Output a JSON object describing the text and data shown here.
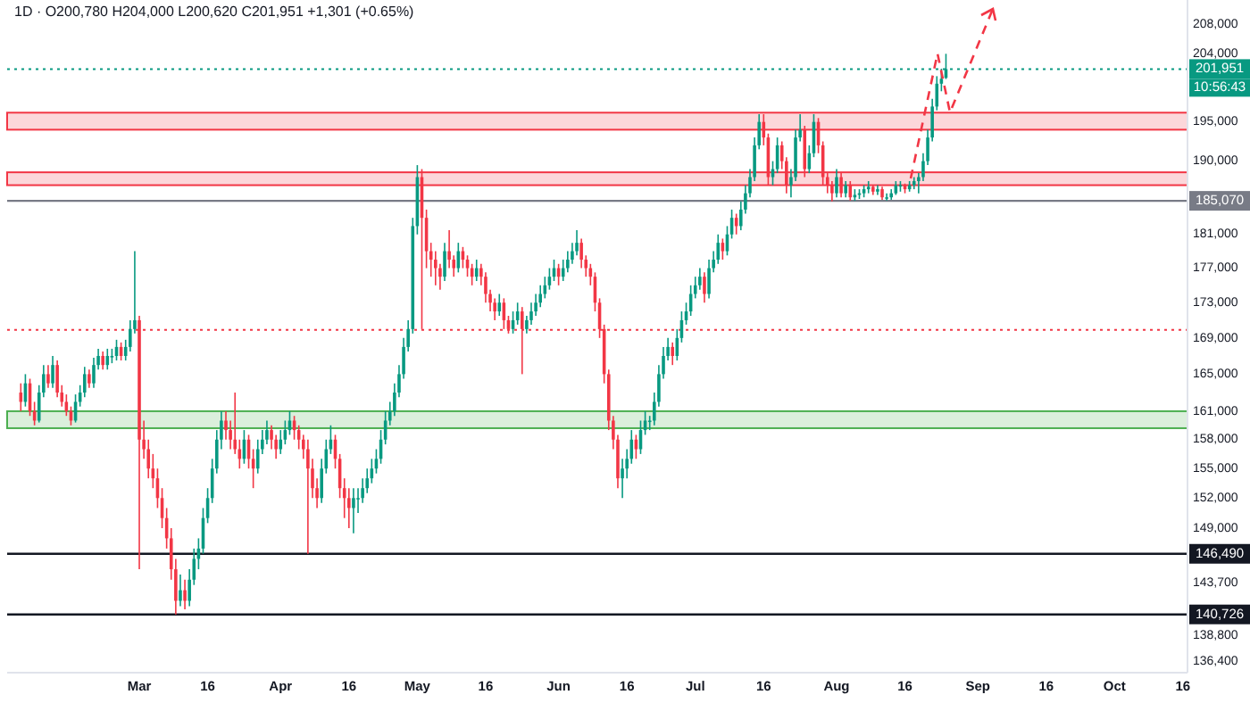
{
  "chart_data": {
    "type": "candlestick",
    "title": "1D · O200,780 H204,000 L200,620 C201,951 +1,301 (+0.65%)",
    "log": true,
    "xlim": [
      "--01-31",
      "--10-17"
    ],
    "ylim": [
      135400,
      211400
    ],
    "xticks": [
      {
        "value": "--03-01",
        "label": "Mar"
      },
      {
        "value": "--03-16",
        "label": "16"
      },
      {
        "value": "--04-01",
        "label": "Apr"
      },
      {
        "value": "--04-16",
        "label": "16"
      },
      {
        "value": "--05-01",
        "label": "May"
      },
      {
        "value": "--05-16",
        "label": "16"
      },
      {
        "value": "--06-01",
        "label": "Jun"
      },
      {
        "value": "--06-16",
        "label": "16"
      },
      {
        "value": "--07-01",
        "label": "Jul"
      },
      {
        "value": "--07-16",
        "label": "16"
      },
      {
        "value": "--08-01",
        "label": "Aug"
      },
      {
        "value": "--08-16",
        "label": "16"
      },
      {
        "value": "--09-01",
        "label": "Sep"
      },
      {
        "value": "--09-16",
        "label": "16"
      },
      {
        "value": "--10-01",
        "label": "Oct"
      },
      {
        "value": "--10-16",
        "label": "16"
      }
    ],
    "yticks": [
      {
        "value": 208000,
        "label": "208,000"
      },
      {
        "value": 204000,
        "label": "204,000"
      },
      {
        "value": 195000,
        "label": "195,000"
      },
      {
        "value": 190000,
        "label": "190,000"
      },
      {
        "value": 181000,
        "label": "181,000"
      },
      {
        "value": 177000,
        "label": "177,000"
      },
      {
        "value": 173000,
        "label": "173,000"
      },
      {
        "value": 169000,
        "label": "169,000"
      },
      {
        "value": 165000,
        "label": "165,000"
      },
      {
        "value": 161000,
        "label": "161,000"
      },
      {
        "value": 158000,
        "label": "158,000"
      },
      {
        "value": 155000,
        "label": "155,000"
      },
      {
        "value": 152000,
        "label": "152,000"
      },
      {
        "value": 149000,
        "label": "149,000"
      },
      {
        "value": 143700,
        "label": "143,700"
      },
      {
        "value": 138800,
        "label": "138,800"
      },
      {
        "value": 136400,
        "label": "136,400"
      }
    ],
    "ref_lines": [
      {
        "axis": "y",
        "value": 201951,
        "label": "201,951",
        "color": "#089981",
        "line_style": "dotted"
      },
      {
        "axis": "y",
        "value": 185070,
        "label": "185,070",
        "color": "#787b86",
        "line_style": "solid"
      },
      {
        "axis": "y",
        "value": 146490,
        "label": "146,490",
        "color": "#131722",
        "line_style": "solid"
      },
      {
        "axis": "y",
        "value": 140726,
        "label": "140,726",
        "color": "#131722",
        "line_style": "solid"
      },
      {
        "axis": "y",
        "value": 169900,
        "label": null,
        "color": "#f23645",
        "line_style": "dotted"
      }
    ],
    "bands": [
      {
        "axis": "y",
        "from": 194000,
        "to": 196200,
        "label": null,
        "color": "#f23645"
      },
      {
        "axis": "y",
        "from": 187000,
        "to": 188600,
        "label": null,
        "color": "#f23645"
      },
      {
        "axis": "y",
        "from": 159200,
        "to": 161000,
        "label": null,
        "color": "#4caf50"
      }
    ],
    "annotations": [
      "10:56:43"
    ],
    "x": [
      "--02-03",
      "--02-04",
      "--02-05",
      "--02-06",
      "--02-07",
      "--02-08",
      "--02-09",
      "--02-10",
      "--02-11",
      "--02-12",
      "--02-13",
      "--02-14",
      "--02-15",
      "--02-16",
      "--02-17",
      "--02-18",
      "--02-19",
      "--02-20",
      "--02-21",
      "--02-22",
      "--02-23",
      "--02-24",
      "--02-25",
      "--02-26",
      "--02-27",
      "--02-28",
      "--03-01",
      "--03-02",
      "--03-03",
      "--03-04",
      "--03-05",
      "--03-06",
      "--03-07",
      "--03-08",
      "--03-09",
      "--03-10",
      "--03-11",
      "--03-12",
      "--03-13",
      "--03-14",
      "--03-15",
      "--03-16",
      "--03-17",
      "--03-18",
      "--03-19",
      "--03-20",
      "--03-21",
      "--03-22",
      "--03-23",
      "--03-24",
      "--03-25",
      "--03-26",
      "--03-27",
      "--03-28",
      "--03-29",
      "--03-30",
      "--03-31",
      "--04-01",
      "--04-02",
      "--04-03",
      "--04-04",
      "--04-05",
      "--04-06",
      "--04-07",
      "--04-08",
      "--04-09",
      "--04-10",
      "--04-11",
      "--04-12",
      "--04-13",
      "--04-14",
      "--04-15",
      "--04-16",
      "--04-17",
      "--04-18",
      "--04-19",
      "--04-20",
      "--04-21",
      "--04-22",
      "--04-23",
      "--04-24",
      "--04-25",
      "--04-26",
      "--04-27",
      "--04-28",
      "--04-29",
      "--04-30",
      "--05-01",
      "--05-02",
      "--05-03",
      "--05-04",
      "--05-05",
      "--05-06",
      "--05-07",
      "--05-08",
      "--05-09",
      "--05-10",
      "--05-11",
      "--05-12",
      "--05-13",
      "--05-14",
      "--05-15",
      "--05-16",
      "--05-17",
      "--05-18",
      "--05-19",
      "--05-20",
      "--05-21",
      "--05-22",
      "--05-23",
      "--05-24",
      "--05-25",
      "--05-26",
      "--05-27",
      "--05-28",
      "--05-29",
      "--05-30",
      "--05-31",
      "--06-01",
      "--06-02",
      "--06-03",
      "--06-04",
      "--06-05",
      "--06-06",
      "--06-07",
      "--06-08",
      "--06-09",
      "--06-10",
      "--06-11",
      "--06-12",
      "--06-13",
      "--06-14",
      "--06-15",
      "--06-16",
      "--06-17",
      "--06-18",
      "--06-19",
      "--06-20",
      "--06-21",
      "--06-22",
      "--06-23",
      "--06-24",
      "--06-25",
      "--06-26",
      "--06-27",
      "--06-28",
      "--06-29",
      "--06-30",
      "--07-01",
      "--07-02",
      "--07-03",
      "--07-04",
      "--07-05",
      "--07-06",
      "--07-07",
      "--07-08",
      "--07-09",
      "--07-10",
      "--07-11",
      "--07-12",
      "--07-13",
      "--07-14",
      "--07-15",
      "--07-16",
      "--07-17",
      "--07-18",
      "--07-19",
      "--07-20",
      "--07-21",
      "--07-22",
      "--07-23",
      "--07-24",
      "--07-25",
      "--07-26",
      "--07-27",
      "--07-28",
      "--07-29",
      "--07-30",
      "--07-31",
      "--08-01",
      "--08-02",
      "--08-03",
      "--08-04",
      "--08-05",
      "--08-06",
      "--08-07",
      "--08-08",
      "--08-09",
      "--08-10",
      "--08-11",
      "--08-12",
      "--08-13",
      "--08-14",
      "--08-15",
      "--08-16",
      "--08-17",
      "--08-18",
      "--08-19",
      "--08-20",
      "--08-21",
      "--08-22",
      "--08-23",
      "--08-24",
      "--08-25"
    ],
    "ohlc": [
      [
        163000,
        164000,
        161000,
        162000
      ],
      [
        162000,
        165000,
        161500,
        164000
      ],
      [
        164000,
        164500,
        160500,
        161000
      ],
      [
        161000,
        162000,
        159500,
        160000
      ],
      [
        160000,
        163800,
        159800,
        163000
      ],
      [
        163000,
        166000,
        162500,
        165000
      ],
      [
        165000,
        166000,
        163500,
        164000
      ],
      [
        164000,
        167000,
        163500,
        166000
      ],
      [
        166000,
        166500,
        162500,
        163000
      ],
      [
        163000,
        163800,
        161500,
        162000
      ],
      [
        162000,
        162800,
        160500,
        161000
      ],
      [
        161000,
        161500,
        159500,
        160000
      ],
      [
        160000,
        162800,
        159800,
        162000
      ],
      [
        162000,
        163800,
        161500,
        163000
      ],
      [
        163000,
        165800,
        162500,
        165000
      ],
      [
        165000,
        165500,
        163500,
        164000
      ],
      [
        164000,
        166800,
        163500,
        166000
      ],
      [
        166000,
        167800,
        165500,
        167000
      ],
      [
        167000,
        167500,
        165500,
        166000
      ],
      [
        166000,
        167800,
        165500,
        167000
      ],
      [
        167000,
        167800,
        166200,
        167000
      ],
      [
        167000,
        168800,
        166500,
        168000
      ],
      [
        168000,
        168500,
        166500,
        167000
      ],
      [
        167000,
        168800,
        166500,
        168000
      ],
      [
        168000,
        171000,
        167500,
        170000
      ],
      [
        170000,
        179000,
        169500,
        171000
      ],
      [
        171000,
        171500,
        145000,
        158000
      ],
      [
        158000,
        160000,
        156000,
        157000
      ],
      [
        157000,
        158000,
        154000,
        155000
      ],
      [
        155000,
        156500,
        153000,
        154000
      ],
      [
        154000,
        155000,
        151000,
        152000
      ],
      [
        152000,
        153000,
        149000,
        150000
      ],
      [
        150000,
        151000,
        147000,
        148000
      ],
      [
        148000,
        149000,
        144000,
        145000
      ],
      [
        145000,
        146000,
        140726,
        142000
      ],
      [
        142000,
        144500,
        141500,
        143000
      ],
      [
        143000,
        144000,
        141200,
        142000
      ],
      [
        142000,
        145000,
        141500,
        144000
      ],
      [
        144000,
        147000,
        143500,
        146000
      ],
      [
        146000,
        148000,
        145000,
        147000
      ],
      [
        147000,
        151000,
        146500,
        150000
      ],
      [
        150000,
        153000,
        149500,
        152000
      ],
      [
        152000,
        156000,
        151500,
        155000
      ],
      [
        155000,
        159000,
        154500,
        158000
      ],
      [
        158000,
        161000,
        157000,
        160000
      ],
      [
        160000,
        161000,
        158000,
        159000
      ],
      [
        159000,
        160000,
        157000,
        158000
      ],
      [
        158000,
        163000,
        156500,
        157000
      ],
      [
        157000,
        158000,
        155000,
        156000
      ],
      [
        156000,
        159000,
        155500,
        158000
      ],
      [
        158000,
        158500,
        155000,
        156000
      ],
      [
        156000,
        157000,
        153000,
        155000
      ],
      [
        155000,
        158000,
        154500,
        157000
      ],
      [
        157000,
        159000,
        156500,
        158000
      ],
      [
        158000,
        160000,
        157500,
        159000
      ],
      [
        159000,
        159500,
        157000,
        158000
      ],
      [
        158000,
        158500,
        156000,
        157000
      ],
      [
        157000,
        159000,
        156500,
        158000
      ],
      [
        158000,
        160000,
        157500,
        159000
      ],
      [
        159000,
        161000,
        158500,
        160000
      ],
      [
        160000,
        160500,
        158000,
        159000
      ],
      [
        159000,
        159500,
        157000,
        158000
      ],
      [
        158000,
        158500,
        156000,
        157000
      ],
      [
        157000,
        158000,
        146490,
        155000
      ],
      [
        155000,
        156000,
        152000,
        153000
      ],
      [
        153000,
        154000,
        151000,
        152000
      ],
      [
        152000,
        156000,
        151500,
        155000
      ],
      [
        155000,
        158000,
        154500,
        157000
      ],
      [
        157000,
        159500,
        156500,
        158000
      ],
      [
        158000,
        158500,
        155000,
        156000
      ],
      [
        156000,
        156500,
        152000,
        153000
      ],
      [
        153000,
        154000,
        150000,
        152000
      ],
      [
        152000,
        153000,
        149000,
        151000
      ],
      [
        151000,
        153000,
        148500,
        152000
      ],
      [
        152000,
        153000,
        150500,
        152000
      ],
      [
        152000,
        154000,
        151500,
        153000
      ],
      [
        153000,
        155000,
        152500,
        154000
      ],
      [
        154000,
        156000,
        153500,
        155000
      ],
      [
        155000,
        157000,
        154500,
        156000
      ],
      [
        156000,
        159000,
        155500,
        158000
      ],
      [
        158000,
        161000,
        157500,
        160000
      ],
      [
        160000,
        162000,
        159500,
        161000
      ],
      [
        161000,
        164000,
        160500,
        163000
      ],
      [
        163000,
        166000,
        162500,
        165000
      ],
      [
        165000,
        169000,
        164500,
        168000
      ],
      [
        168000,
        171000,
        167500,
        170000
      ],
      [
        170000,
        183000,
        169500,
        182000
      ],
      [
        182000,
        189500,
        181000,
        188000
      ],
      [
        188000,
        189000,
        170000,
        183000
      ],
      [
        183000,
        184000,
        177000,
        179000
      ],
      [
        179000,
        180000,
        176000,
        178000
      ],
      [
        178000,
        179000,
        175000,
        177000
      ],
      [
        177000,
        177500,
        174500,
        176000
      ],
      [
        176000,
        180000,
        175500,
        179000
      ],
      [
        179000,
        181500,
        177000,
        178000
      ],
      [
        178000,
        178500,
        176000,
        177000
      ],
      [
        177000,
        180000,
        176500,
        179000
      ],
      [
        179000,
        179500,
        177000,
        178000
      ],
      [
        178000,
        178500,
        176000,
        177000
      ],
      [
        177000,
        177500,
        175000,
        176000
      ],
      [
        176000,
        178000,
        175500,
        177000
      ],
      [
        177000,
        177500,
        175000,
        176000
      ],
      [
        176000,
        176500,
        173000,
        174000
      ],
      [
        174000,
        174500,
        172000,
        173000
      ],
      [
        173000,
        173500,
        171000,
        172000
      ],
      [
        172000,
        174000,
        171500,
        173000
      ],
      [
        173000,
        173500,
        170000,
        171000
      ],
      [
        171000,
        171500,
        169500,
        170000
      ],
      [
        170000,
        172000,
        169500,
        171000
      ],
      [
        171000,
        173000,
        170500,
        172000
      ],
      [
        172000,
        172500,
        165000,
        170000
      ],
      [
        170000,
        171500,
        169500,
        171000
      ],
      [
        171000,
        173000,
        170500,
        172000
      ],
      [
        172000,
        174000,
        171500,
        173000
      ],
      [
        173000,
        175000,
        172500,
        174000
      ],
      [
        174000,
        176000,
        173500,
        175000
      ],
      [
        175000,
        177000,
        174500,
        176000
      ],
      [
        176000,
        178000,
        175500,
        177000
      ],
      [
        177000,
        177500,
        175000,
        176000
      ],
      [
        176000,
        178000,
        175500,
        177000
      ],
      [
        177000,
        179000,
        176500,
        178000
      ],
      [
        178000,
        180000,
        177500,
        179000
      ],
      [
        179000,
        181500,
        178500,
        180000
      ],
      [
        180000,
        180500,
        177000,
        178000
      ],
      [
        178000,
        178500,
        176000,
        177000
      ],
      [
        177000,
        177500,
        175000,
        176000
      ],
      [
        176000,
        176500,
        172000,
        173000
      ],
      [
        173000,
        173500,
        169000,
        170000
      ],
      [
        170000,
        170500,
        164000,
        165000
      ],
      [
        165000,
        165500,
        159000,
        160000
      ],
      [
        160000,
        160500,
        157000,
        158000
      ],
      [
        158000,
        158500,
        153000,
        154000
      ],
      [
        154000,
        156000,
        152000,
        155000
      ],
      [
        155000,
        157000,
        154000,
        156000
      ],
      [
        156000,
        159000,
        155500,
        158000
      ],
      [
        158000,
        158500,
        156000,
        157000
      ],
      [
        157000,
        160000,
        156500,
        159000
      ],
      [
        159000,
        161000,
        158500,
        160000
      ],
      [
        160000,
        160500,
        159000,
        160000
      ],
      [
        160000,
        163000,
        159500,
        162000
      ],
      [
        162000,
        166000,
        161500,
        165000
      ],
      [
        165000,
        168000,
        164500,
        167000
      ],
      [
        167000,
        169000,
        166500,
        168000
      ],
      [
        168000,
        168500,
        166000,
        167000
      ],
      [
        167000,
        170000,
        166500,
        169000
      ],
      [
        169000,
        172000,
        168500,
        171000
      ],
      [
        171000,
        173000,
        170500,
        172000
      ],
      [
        172000,
        175000,
        171500,
        174000
      ],
      [
        174000,
        176000,
        173500,
        175000
      ],
      [
        175000,
        177000,
        174500,
        176000
      ],
      [
        176000,
        176500,
        173000,
        174000
      ],
      [
        174000,
        178000,
        173500,
        177000
      ],
      [
        177000,
        179000,
        176500,
        178000
      ],
      [
        178000,
        181000,
        177500,
        180000
      ],
      [
        180000,
        180500,
        178000,
        179000
      ],
      [
        179000,
        182000,
        178500,
        181000
      ],
      [
        181000,
        184000,
        180500,
        183000
      ],
      [
        183000,
        183500,
        181000,
        182000
      ],
      [
        182000,
        185000,
        181500,
        184000
      ],
      [
        184000,
        187000,
        183500,
        186000
      ],
      [
        186000,
        189000,
        185500,
        188000
      ],
      [
        188000,
        193000,
        187500,
        192000
      ],
      [
        192000,
        196000,
        191500,
        195000
      ],
      [
        195000,
        196000,
        192000,
        193000
      ],
      [
        193000,
        193500,
        187000,
        188000
      ],
      [
        188000,
        190000,
        187000,
        189000
      ],
      [
        189000,
        193000,
        188500,
        192000
      ],
      [
        192000,
        192500,
        189000,
        190000
      ],
      [
        190000,
        190500,
        186000,
        187000
      ],
      [
        187000,
        189000,
        185500,
        188000
      ],
      [
        188000,
        194000,
        187500,
        193000
      ],
      [
        193000,
        196000,
        192500,
        194000
      ],
      [
        194000,
        194500,
        188000,
        189000
      ],
      [
        189000,
        192000,
        188500,
        191000
      ],
      [
        191000,
        196000,
        190500,
        195000
      ],
      [
        195000,
        195500,
        191000,
        192000
      ],
      [
        192000,
        192500,
        187000,
        188000
      ],
      [
        188000,
        188500,
        186000,
        187000
      ],
      [
        187000,
        187500,
        185000,
        186000
      ],
      [
        186000,
        189000,
        185500,
        188000
      ],
      [
        188000,
        188500,
        185500,
        186000
      ],
      [
        186000,
        187500,
        185500,
        187000
      ],
      [
        187000,
        187500,
        185100,
        185500
      ],
      [
        185500,
        186500,
        185070,
        185800
      ],
      [
        185800,
        186500,
        185300,
        186000
      ],
      [
        186000,
        187000,
        185500,
        186500
      ],
      [
        186500,
        187500,
        186000,
        186800
      ],
      [
        186800,
        187000,
        185800,
        186200
      ],
      [
        186200,
        187000,
        185800,
        186500
      ],
      [
        186500,
        186800,
        185200,
        185500
      ],
      [
        185500,
        186000,
        185100,
        185500
      ],
      [
        185500,
        186500,
        185200,
        186000
      ],
      [
        186000,
        187500,
        185800,
        187000
      ],
      [
        187000,
        187500,
        186200,
        187000
      ],
      [
        187000,
        187200,
        186000,
        186500
      ],
      [
        186500,
        187500,
        186200,
        187000
      ],
      [
        187000,
        188000,
        186500,
        187500
      ],
      [
        187500,
        188500,
        186000,
        188000
      ],
      [
        188000,
        191000,
        187500,
        190000
      ],
      [
        190000,
        194000,
        189500,
        193000
      ],
      [
        193000,
        198000,
        192500,
        197000
      ],
      [
        197000,
        201000,
        196500,
        200000
      ],
      [
        200000,
        202000,
        199000,
        200650
      ],
      [
        200780,
        204000,
        200620,
        201951
      ]
    ]
  }
}
